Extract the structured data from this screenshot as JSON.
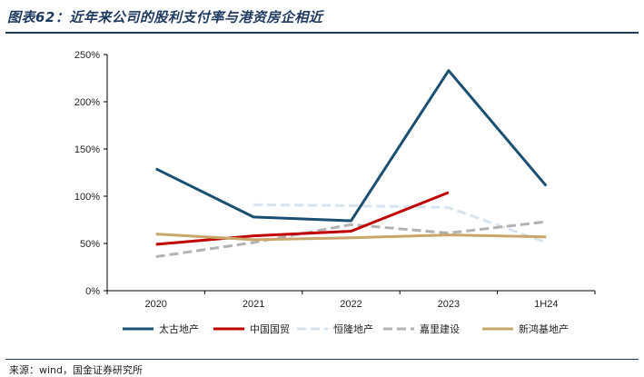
{
  "header": {
    "title": "图表62：近年来公司的股利支付率与港资房企相近"
  },
  "footer": {
    "source": "来源：wind，国金证券研究所"
  },
  "chart_data": {
    "type": "line",
    "title": "图表62：近年来公司的股利支付率与港资房企相近",
    "xlabel": "",
    "ylabel": "",
    "categories": [
      "2020",
      "2021",
      "2022",
      "2023",
      "1H24"
    ],
    "ylim": [
      0,
      250
    ],
    "yticks": [
      0,
      50,
      100,
      150,
      200,
      250
    ],
    "ytick_labels": [
      "0%",
      "50%",
      "100%",
      "150%",
      "200%",
      "250%"
    ],
    "grid": false,
    "legend_position": "bottom",
    "series": [
      {
        "name": "太古地产",
        "values": [
          129,
          78,
          74,
          233,
          111
        ],
        "color": "#1b4f72",
        "dash": "solid",
        "width": 3
      },
      {
        "name": "中国国贸",
        "values": [
          49,
          58,
          63,
          104,
          null
        ],
        "color": "#c00000",
        "dash": "solid",
        "width": 3
      },
      {
        "name": "恒隆地产",
        "values": [
          null,
          91,
          90,
          88,
          51
        ],
        "color": "#d6e4f2",
        "dash": "dashed",
        "width": 3
      },
      {
        "name": "嘉里建设",
        "values": [
          36,
          51,
          70,
          61,
          73
        ],
        "color": "#b2b2b2",
        "dash": "dashed",
        "width": 3
      },
      {
        "name": "新鸿基地产",
        "values": [
          60,
          54,
          56,
          59,
          57
        ],
        "color": "#c9a66b",
        "dash": "solid",
        "width": 3
      }
    ]
  }
}
